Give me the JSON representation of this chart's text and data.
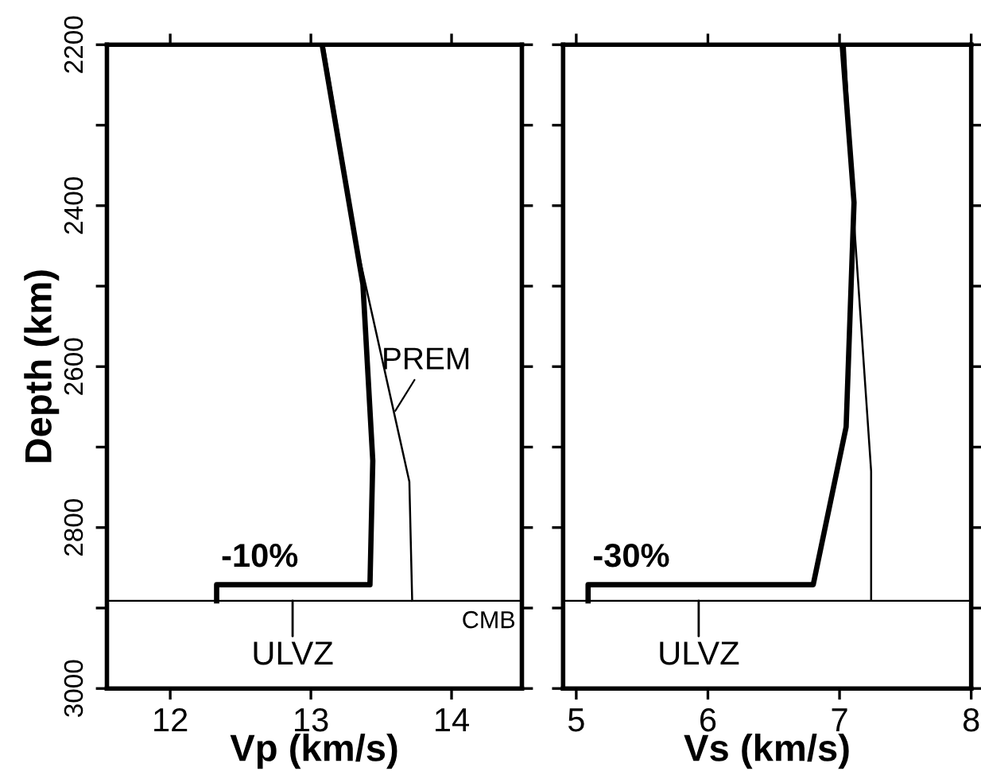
{
  "chart_data": [
    {
      "type": "line",
      "xlabel": "Vp (km/s)",
      "ylabel": "Depth (km)",
      "xlim": [
        11.55,
        14.5
      ],
      "xticks": [
        12,
        13,
        14
      ],
      "ylim": [
        3000,
        2200
      ],
      "yticks": [
        2200,
        {
          "value": 2300,
          "label": null
        },
        2400,
        {
          "value": 2500,
          "label": null
        },
        2600,
        {
          "value": 2700,
          "label": null
        },
        2800,
        {
          "value": 2900,
          "label": null
        },
        3000
      ],
      "grid": false,
      "legend": false,
      "series": [
        {
          "color": "#000000",
          "x": [
            13.08,
            13.37,
            13.44,
            13.42,
            12.33,
            12.33
          ],
          "values": [
            2200,
            2498,
            2717,
            2871,
            2871,
            2891
          ]
        },
        {
          "color": "#000000",
          "x": [
            13.09,
            13.34,
            13.7,
            13.72
          ],
          "values": [
            2200,
            2460,
            2743,
            2891
          ]
        }
      ],
      "ref_lines": [
        {
          "axis": "y",
          "value": 2891,
          "label": "CMB"
        }
      ],
      "annotations": [
        {
          "text": "-10%",
          "x": 12.33,
          "y": 2871
        },
        {
          "text": "ULVZ",
          "x": 12.87,
          "y": 2891
        },
        {
          "text": "PREM",
          "x": 13.6,
          "y": 2655
        }
      ]
    },
    {
      "type": "line",
      "xlabel": "Vs (km/s)",
      "xlim": [
        4.9,
        8
      ],
      "xticks": [
        5,
        6,
        7,
        8
      ],
      "ylim": [
        3000,
        2200
      ],
      "yticks": [
        2200,
        {
          "value": 2300,
          "label": null
        },
        2400,
        {
          "value": 2500,
          "label": null
        },
        2600,
        {
          "value": 2700,
          "label": null
        },
        2800,
        {
          "value": 2900,
          "label": null
        },
        3000
      ],
      "tick_labels": "x",
      "grid": false,
      "legend": false,
      "series": [
        {
          "color": "#000000",
          "x": [
            7.02,
            7.11,
            7.05,
            6.8,
            5.09,
            5.09
          ],
          "values": [
            2200,
            2396,
            2675,
            2871,
            2871,
            2891
          ]
        },
        {
          "color": "#000000",
          "x": [
            7.04,
            7.11,
            7.24,
            7.24
          ],
          "values": [
            2200,
            2420,
            2730,
            2891
          ]
        }
      ],
      "ref_lines": [
        {
          "axis": "y",
          "value": 2891
        }
      ],
      "annotations": [
        {
          "text": "-30%",
          "x": 5.09,
          "y": 2871
        },
        {
          "text": "ULVZ",
          "x": 5.93,
          "y": 2891
        }
      ]
    }
  ]
}
